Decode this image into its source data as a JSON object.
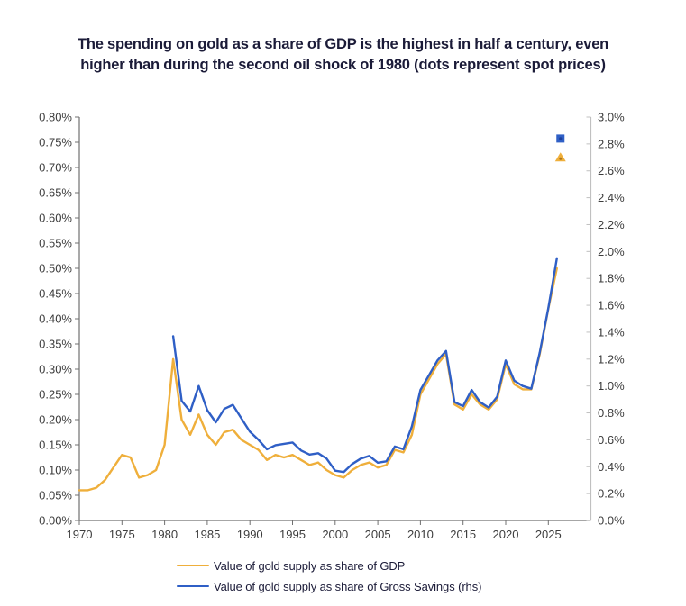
{
  "title_lines": [
    "The spending on gold as a share of GDP is the highest in half a century, even",
    "higher than during the second oil shock of 1980 (dots represent spot prices)"
  ],
  "legend": [
    {
      "label": "Value of gold supply as share of GDP",
      "color": "#EFAF3B"
    },
    {
      "label": "Value of gold supply as share of Gross Savings (rhs)",
      "color": "#2F5FC6"
    }
  ],
  "colors": {
    "gdp_line": "#EFAF3B",
    "savings_line": "#2F5FC6",
    "gdp_marker_core": "#A8731D",
    "savings_marker_core": "#1C3F9A",
    "title_text": "#1B1B38",
    "axis_text": "#3C3C3C",
    "axis_line": "#707070",
    "right_axis_line": "#C0C0C0"
  },
  "chart_data": {
    "type": "line",
    "title": "The spending on gold as a share of GDP is the highest in half a century, even higher than during the second oil shock of 1980 (dots represent spot prices)",
    "xlabel": "",
    "ylabel_left": "",
    "ylabel_right": "",
    "grid": false,
    "legend_position": "bottom",
    "x_axis": {
      "tick_labels": [
        "1970",
        "1975",
        "1980",
        "1985",
        "1990",
        "1995",
        "2000",
        "2005",
        "2010",
        "2015",
        "2020",
        "2025"
      ],
      "tick_years": [
        1970,
        1975,
        1980,
        1985,
        1990,
        1995,
        2000,
        2005,
        2010,
        2015,
        2020,
        2025
      ],
      "range": [
        1970,
        2030
      ]
    },
    "y_axis_left": {
      "range": [
        0,
        0.8
      ],
      "tick_step": 0.05,
      "tick_labels": [
        "0.00%",
        "0.05%",
        "0.10%",
        "0.15%",
        "0.20%",
        "0.25%",
        "0.30%",
        "0.35%",
        "0.40%",
        "0.45%",
        "0.50%",
        "0.55%",
        "0.60%",
        "0.65%",
        "0.70%",
        "0.75%",
        "0.80%"
      ]
    },
    "y_axis_right": {
      "range": [
        0,
        3.0
      ],
      "tick_step": 0.2,
      "tick_labels": [
        "0.0%",
        "0.2%",
        "0.4%",
        "0.6%",
        "0.8%",
        "1.0%",
        "1.2%",
        "1.4%",
        "1.6%",
        "1.8%",
        "2.0%",
        "2.2%",
        "2.4%",
        "2.6%",
        "2.8%",
        "3.0%"
      ]
    },
    "series": [
      {
        "name": "Value of gold supply as share of GDP",
        "axis": "left",
        "unit": "% of GDP",
        "start_year": 1970,
        "values": [
          0.06,
          0.06,
          0.065,
          0.08,
          0.105,
          0.13,
          0.125,
          0.085,
          0.09,
          0.1,
          0.15,
          0.32,
          0.2,
          0.17,
          0.21,
          0.17,
          0.15,
          0.175,
          0.18,
          0.16,
          0.15,
          0.14,
          0.12,
          0.13,
          0.125,
          0.13,
          0.12,
          0.11,
          0.115,
          0.1,
          0.09,
          0.085,
          0.1,
          0.11,
          0.115,
          0.105,
          0.11,
          0.14,
          0.135,
          0.17,
          0.25,
          0.28,
          0.31,
          0.33,
          0.23,
          0.22,
          0.25,
          0.23,
          0.22,
          0.24,
          0.31,
          0.27,
          0.26,
          0.26,
          0.33,
          0.42,
          0.5
        ]
      },
      {
        "name": "Value of gold supply as share of Gross Savings (rhs)",
        "axis": "right",
        "unit": "% of Gross Savings",
        "start_year": 1981,
        "values": [
          1.37,
          0.89,
          0.81,
          1.0,
          0.82,
          0.73,
          0.83,
          0.86,
          0.76,
          0.66,
          0.6,
          0.53,
          0.56,
          0.57,
          0.58,
          0.52,
          0.49,
          0.5,
          0.46,
          0.37,
          0.36,
          0.42,
          0.46,
          0.48,
          0.43,
          0.44,
          0.55,
          0.53,
          0.7,
          0.97,
          1.08,
          1.19,
          1.26,
          0.88,
          0.85,
          0.97,
          0.88,
          0.84,
          0.92,
          1.19,
          1.04,
          1.0,
          0.98,
          1.25,
          1.58,
          1.95
        ]
      }
    ],
    "spot_price_markers": [
      {
        "series": "Value of gold supply as share of GDP",
        "shape": "triangle",
        "year": 2026,
        "value": 0.72,
        "axis": "left"
      },
      {
        "series": "Value of gold supply as share of Gross Savings (rhs)",
        "shape": "square",
        "year": 2026,
        "value": 2.84,
        "axis": "right"
      }
    ]
  }
}
